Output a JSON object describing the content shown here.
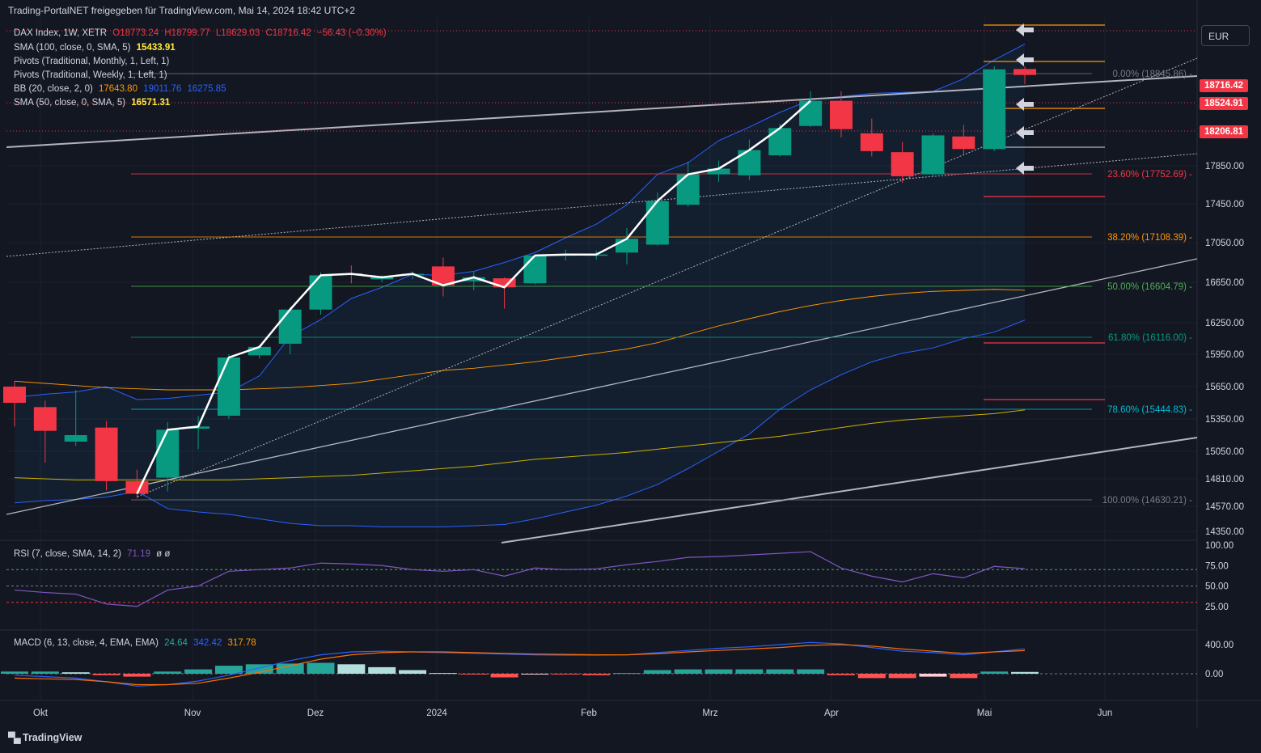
{
  "header": {
    "title": "Trading-PortalNET freigegeben für TradingView.com, Mai 14, 2024 18:42 UTC+2"
  },
  "currency_button": "EUR",
  "legend": {
    "main": {
      "symbol": "DAX Index, 1W, XETR",
      "open": "O18773.24",
      "high": "H18799.77",
      "low": "L18629.03",
      "close": "C18716.42",
      "change": "−56.43 (−0.30%)"
    },
    "sma100": {
      "label": "SMA (100, close, 0, SMA, 5)",
      "value": "15433.91"
    },
    "pivots_monthly": {
      "label": "Pivots (Traditional, Monthly, 1, Left, 1)"
    },
    "pivots_weekly": {
      "label": "Pivots (Traditional, Weekly, 1, Left, 1)"
    },
    "bb": {
      "label": "BB (20, close, 2, 0)",
      "basis": "17643.80",
      "upper": "19011.76",
      "lower": "16275.85"
    },
    "sma50": {
      "label": "SMA (50, close, 0, SMA, 5)",
      "value": "16571.31"
    },
    "rsi": {
      "label": "RSI (7, close, SMA, 14, 2)",
      "value": "71.19",
      "extra": "ø ø"
    },
    "macd": {
      "label": "MACD (6, 13, close, 4, EMA, EMA)",
      "hist": "24.64",
      "macd": "342.42",
      "signal": "317.78"
    }
  },
  "price_labels": [
    {
      "text": "18716.42",
      "color": "#f23645"
    },
    {
      "text": "18524.91",
      "color": "#f23645"
    },
    {
      "text": "18206.81",
      "color": "#f23645"
    }
  ],
  "fib_labels": [
    {
      "text": "0.00% (18845.86)",
      "color": "#787b86",
      "value": 18845.86
    },
    {
      "text": "23.60% (17752.69)",
      "color": "#f23645",
      "value": 17752.69
    },
    {
      "text": "38.20% (17108.39)",
      "color": "#ff9800",
      "value": 17108.39
    },
    {
      "text": "50.00% (16604.79)",
      "color": "#4caf50",
      "value": 16604.79
    },
    {
      "text": "61.80% (16116.00)",
      "color": "#089981",
      "value": 16116.0
    },
    {
      "text": "78.60% (15444.83)",
      "color": "#00bcd4",
      "value": 15444.83
    },
    {
      "text": "100.00% (14630.21)",
      "color": "#787b86",
      "value": 14630.21
    }
  ],
  "y_ticks": [
    "17850.00",
    "17450.00",
    "17050.00",
    "16650.00",
    "16250.00",
    "15950.00",
    "15650.00",
    "15350.00",
    "15050.00",
    "14810.00",
    "14570.00",
    "14350.00"
  ],
  "rsi_ticks": [
    "100.00",
    "75.00",
    "50.00",
    "25.00"
  ],
  "macd_ticks": [
    "400.00",
    "0.00"
  ],
  "x_ticks": [
    "Okt",
    "Nov",
    "Dez",
    "2024",
    "Feb",
    "Mrz",
    "Apr",
    "Mai",
    "Jun"
  ],
  "footer": {
    "brand": "TradingView"
  },
  "chart_data": {
    "type": "candlestick",
    "timeframe": "1W",
    "candles": [
      {
        "o": 15650,
        "h": 15700,
        "l": 15280,
        "c": 15500
      },
      {
        "o": 15460,
        "h": 15520,
        "l": 14950,
        "c": 15240
      },
      {
        "o": 15140,
        "h": 15620,
        "l": 15100,
        "c": 15200
      },
      {
        "o": 15270,
        "h": 15330,
        "l": 14710,
        "c": 14790
      },
      {
        "o": 14790,
        "h": 14890,
        "l": 14640,
        "c": 14680
      },
      {
        "o": 14820,
        "h": 15320,
        "l": 14700,
        "c": 15250
      },
      {
        "o": 15260,
        "h": 15380,
        "l": 15070,
        "c": 15280
      },
      {
        "o": 15380,
        "h": 15950,
        "l": 15350,
        "c": 15920
      },
      {
        "o": 15940,
        "h": 16040,
        "l": 15910,
        "c": 16020
      },
      {
        "o": 16050,
        "h": 16400,
        "l": 15950,
        "c": 16380
      },
      {
        "o": 16380,
        "h": 16750,
        "l": 16330,
        "c": 16720
      },
      {
        "o": 16740,
        "h": 16820,
        "l": 16640,
        "c": 16735
      },
      {
        "o": 16680,
        "h": 16720,
        "l": 16650,
        "c": 16700
      },
      {
        "o": 16720,
        "h": 16760,
        "l": 16680,
        "c": 16735
      },
      {
        "o": 16810,
        "h": 16900,
        "l": 16510,
        "c": 16620
      },
      {
        "o": 16660,
        "h": 16760,
        "l": 16570,
        "c": 16700
      },
      {
        "o": 16690,
        "h": 16700,
        "l": 16390,
        "c": 16600
      },
      {
        "o": 16640,
        "h": 16930,
        "l": 16630,
        "c": 16920
      },
      {
        "o": 16930,
        "h": 16980,
        "l": 16870,
        "c": 16930
      },
      {
        "o": 16930,
        "h": 16970,
        "l": 16880,
        "c": 16930
      },
      {
        "o": 16950,
        "h": 17200,
        "l": 16830,
        "c": 17090
      },
      {
        "o": 17030,
        "h": 17570,
        "l": 17020,
        "c": 17480
      },
      {
        "o": 17440,
        "h": 17890,
        "l": 17420,
        "c": 17760
      },
      {
        "o": 17760,
        "h": 17900,
        "l": 17680,
        "c": 17820
      },
      {
        "o": 17750,
        "h": 18100,
        "l": 17700,
        "c": 18000
      },
      {
        "o": 17950,
        "h": 18250,
        "l": 17940,
        "c": 18210
      },
      {
        "o": 18230,
        "h": 18560,
        "l": 18220,
        "c": 18470
      },
      {
        "o": 18470,
        "h": 18560,
        "l": 18120,
        "c": 18200
      },
      {
        "o": 18160,
        "h": 18300,
        "l": 17940,
        "c": 17990
      },
      {
        "o": 17980,
        "h": 18080,
        "l": 17670,
        "c": 17740
      },
      {
        "o": 17760,
        "h": 18160,
        "l": 17740,
        "c": 18140
      },
      {
        "o": 18130,
        "h": 18240,
        "l": 17960,
        "c": 18010
      },
      {
        "o": 18010,
        "h": 18800,
        "l": 17990,
        "c": 18770
      },
      {
        "o": 18773.24,
        "h": 18799.77,
        "l": 18629.03,
        "c": 18716.42
      }
    ],
    "y_range": [
      14300,
      19200
    ],
    "x_range_labels": [
      "Okt",
      "Nov",
      "Dez",
      "2024",
      "Feb",
      "Mrz",
      "Apr",
      "Mai",
      "Jun"
    ],
    "bollinger_upper": [
      15550,
      15580,
      15600,
      15650,
      15530,
      15540,
      15570,
      15600,
      15750,
      16120,
      16280,
      16490,
      16600,
      16730,
      16720,
      16760,
      16850,
      16950,
      17100,
      17240,
      17440,
      17760,
      17880,
      18090,
      18220,
      18360,
      18480,
      18510,
      18540,
      18550,
      18560,
      18680,
      18860,
      19011.76
    ],
    "bollinger_lower": [
      14600,
      14620,
      14630,
      14650,
      14700,
      14550,
      14520,
      14500,
      14460,
      14420,
      14400,
      14400,
      14390,
      14390,
      14390,
      14400,
      14410,
      14460,
      14520,
      14580,
      14660,
      14760,
      14900,
      15050,
      15210,
      15440,
      15620,
      15760,
      15880,
      15960,
      16010,
      16100,
      16160,
      16275.85
    ],
    "sma50": [
      15700,
      15680,
      15660,
      15640,
      15630,
      15620,
      15620,
      15620,
      15630,
      15640,
      15660,
      15680,
      15720,
      15760,
      15800,
      15820,
      15850,
      15880,
      15920,
      15960,
      16000,
      16060,
      16140,
      16220,
      16290,
      16360,
      16420,
      16470,
      16510,
      16540,
      16560,
      16570,
      16580,
      16571.31
    ],
    "sma100": [
      14820,
      14810,
      14800,
      14800,
      14800,
      14800,
      14800,
      14800,
      14810,
      14820,
      14830,
      14840,
      14860,
      14880,
      14900,
      14920,
      14950,
      14980,
      15000,
      15020,
      15040,
      15070,
      15100,
      15130,
      15160,
      15190,
      15230,
      15270,
      15310,
      15340,
      15360,
      15380,
      15400,
      15433.91
    ],
    "rsi": [
      45,
      42,
      40,
      28,
      25,
      45,
      50,
      68,
      70,
      72,
      78,
      77,
      75,
      70,
      68,
      70,
      62,
      72,
      70,
      71,
      76,
      80,
      85,
      86,
      88,
      90,
      92,
      72,
      62,
      55,
      65,
      60,
      74,
      71.19
    ],
    "rsi_levels": [
      70,
      50,
      30
    ],
    "macd_line": [
      -20,
      -40,
      -60,
      -110,
      -170,
      -150,
      -100,
      -20,
      80,
      180,
      260,
      300,
      310,
      300,
      290,
      280,
      270,
      260,
      255,
      255,
      260,
      290,
      320,
      350,
      370,
      400,
      430,
      410,
      360,
      310,
      290,
      260,
      300,
      342.42
    ],
    "macd_signal": [
      -60,
      -70,
      -80,
      -110,
      -150,
      -150,
      -130,
      -60,
      20,
      110,
      200,
      260,
      290,
      300,
      300,
      290,
      280,
      270,
      265,
      260,
      260,
      275,
      300,
      320,
      340,
      360,
      390,
      400,
      380,
      340,
      310,
      280,
      300,
      317.78
    ],
    "macd_hist": [
      30,
      30,
      20,
      -20,
      -40,
      30,
      60,
      110,
      130,
      140,
      150,
      130,
      90,
      50,
      10,
      -10,
      -50,
      -10,
      -10,
      -20,
      10,
      50,
      60,
      60,
      60,
      60,
      60,
      -20,
      -60,
      -60,
      -40,
      -60,
      30,
      24.64
    ]
  }
}
